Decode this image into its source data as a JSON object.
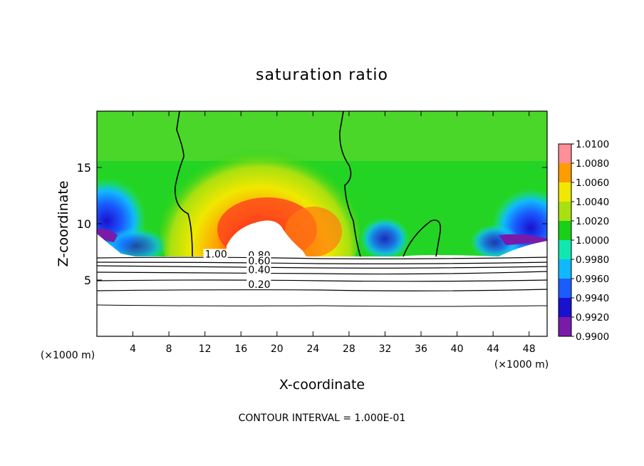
{
  "chart_data": {
    "type": "heatmap",
    "title": "saturation ratio",
    "xlabel": "X-coordinate",
    "ylabel": "Z-coordinate",
    "x_unit": "(×1000 m)",
    "xlim": [
      0,
      50
    ],
    "ylim": [
      0,
      20
    ],
    "x_ticks": [
      4,
      8,
      12,
      16,
      20,
      24,
      28,
      32,
      36,
      40,
      44,
      48
    ],
    "y_ticks": [
      5,
      10,
      15
    ],
    "footer": "CONTOUR INTERVAL = 1.000E-01",
    "colorbar": {
      "levels": [
        "0.9900",
        "0.9920",
        "0.9940",
        "0.9960",
        "0.9980",
        "1.0000",
        "1.0020",
        "1.0040",
        "1.0060",
        "1.0080",
        "1.0100"
      ],
      "colors": [
        "#7a1aa8",
        "#1a10d0",
        "#1a5cff",
        "#10b8ff",
        "#10e8b0",
        "#18d018",
        "#a8e010",
        "#f0e800",
        "#ff9c00",
        "#ff2a10",
        "#ff9aa8"
      ]
    },
    "contour_labels": [
      {
        "text": "1.00",
        "x": 12.0,
        "y": 7.0
      },
      {
        "text": "0.80",
        "x": 16.8,
        "y": 6.9
      },
      {
        "text": "0.60",
        "x": 16.8,
        "y": 6.4
      },
      {
        "text": "0.40",
        "x": 16.8,
        "y": 5.6
      },
      {
        "text": "0.20",
        "x": 16.8,
        "y": 4.3
      }
    ]
  }
}
